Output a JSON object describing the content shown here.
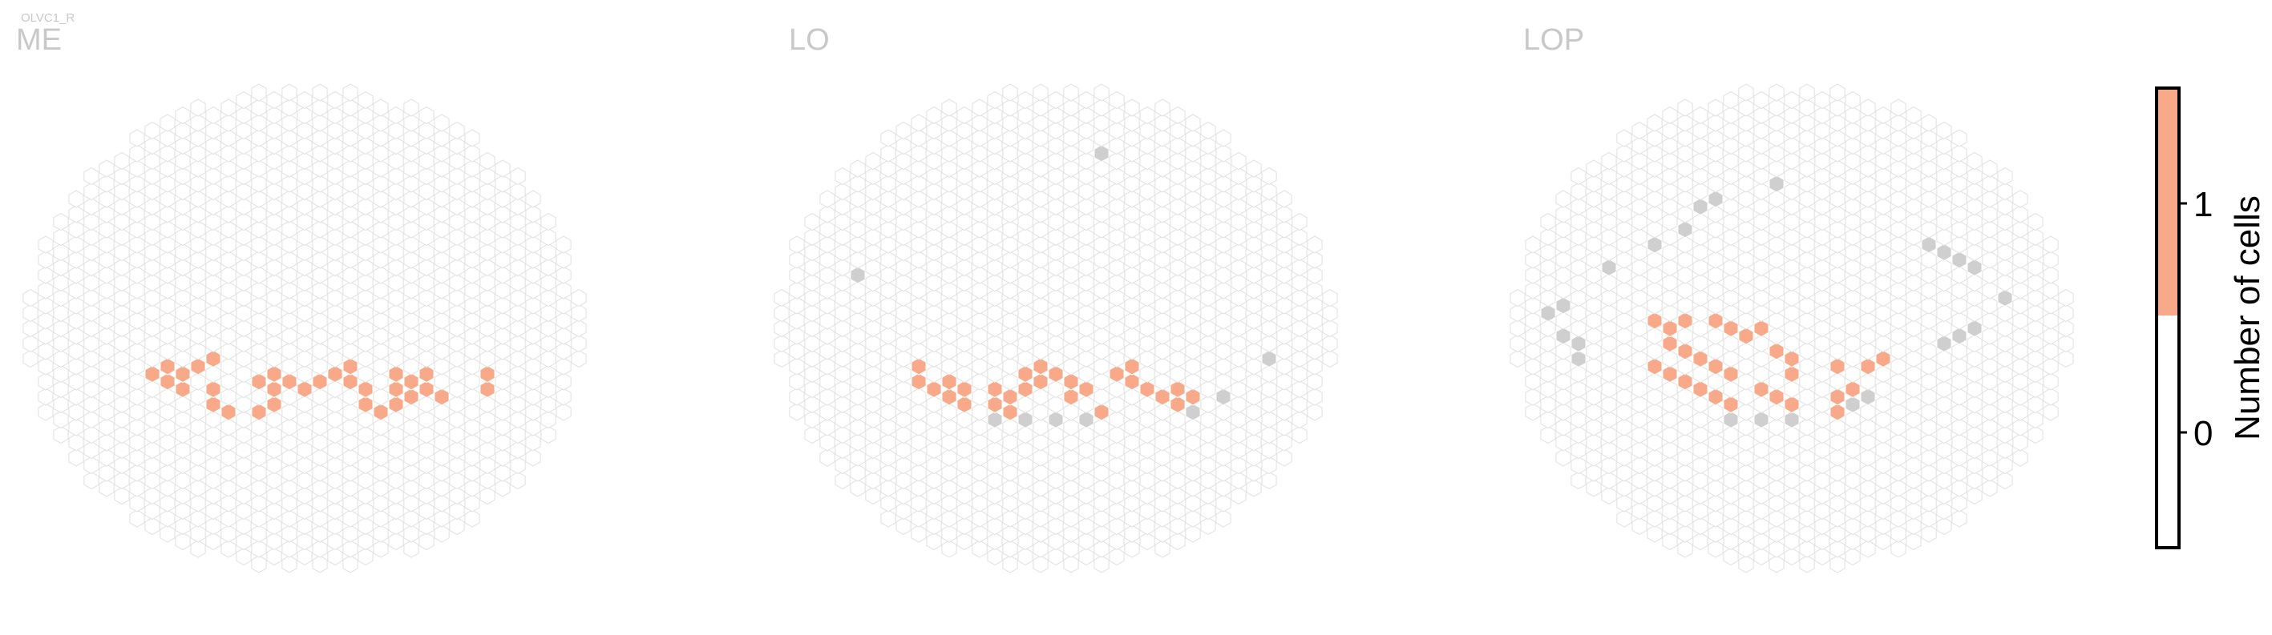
{
  "cell_type_label": "OLVC1_R",
  "colors": {
    "count_1": "#f7a98a",
    "count_0": "#ffffff",
    "hex_outline": "#e2e2e2",
    "outside_column": "#cfcfcf"
  },
  "colorbar": {
    "label": "Number of cells",
    "ticks": [
      "0",
      "1"
    ]
  },
  "chart_data": {
    "type": "heatmap",
    "layout": "hexagonal-grid",
    "panels": [
      {
        "name": "ME",
        "count_1_cells": [
          [
            -10,
            -5
          ],
          [
            -9,
            -5
          ],
          [
            -9,
            -6
          ],
          [
            -10,
            -6
          ],
          [
            -10,
            -7
          ],
          [
            -9,
            -7
          ],
          [
            -9,
            -8
          ],
          [
            -8,
            -5
          ],
          [
            -8,
            -6
          ],
          [
            -8,
            -7
          ],
          [
            -8,
            -8
          ],
          [
            -7,
            -4
          ],
          [
            -7,
            -5
          ],
          [
            -7,
            -6
          ],
          [
            -6,
            -4
          ],
          [
            -6,
            -7
          ],
          [
            -6,
            -8
          ],
          [
            -6,
            -9
          ],
          [
            -6,
            -10
          ],
          [
            -5,
            -10
          ],
          [
            -5,
            -11
          ],
          [
            -4,
            -11
          ],
          [
            -3,
            -11
          ],
          [
            -2,
            -10
          ],
          [
            -4,
            -7
          ],
          [
            -3,
            -7
          ],
          [
            -3,
            -6
          ],
          [
            -2,
            -6
          ],
          [
            -2,
            -7
          ],
          [
            -2,
            -8
          ],
          [
            -2,
            -9
          ],
          [
            -1,
            -7
          ],
          [
            -1,
            -8
          ],
          [
            0,
            -7
          ],
          [
            0,
            -8
          ],
          [
            -1,
            -10
          ],
          [
            0,
            -11
          ],
          [
            1,
            -6
          ],
          [
            1,
            -7
          ],
          [
            2,
            -6
          ],
          [
            2,
            -5
          ],
          [
            3,
            -5
          ],
          [
            3,
            -6
          ],
          [
            3,
            -7
          ],
          [
            3,
            -8
          ],
          [
            4,
            -8
          ],
          [
            4,
            -9
          ],
          [
            3,
            -10
          ],
          [
            4,
            -10
          ],
          [
            5,
            -10
          ],
          [
            5,
            -11
          ],
          [
            6,
            -11
          ],
          [
            6,
            -10
          ],
          [
            6,
            -8
          ],
          [
            7,
            -8
          ],
          [
            7,
            -7
          ],
          [
            6,
            -6
          ],
          [
            7,
            -6
          ],
          [
            8,
            -6
          ],
          [
            8,
            -7
          ],
          [
            8,
            -8
          ],
          [
            7,
            -9
          ],
          [
            7,
            -10
          ],
          [
            9,
            -9
          ],
          [
            10,
            -9
          ],
          [
            11,
            -8
          ],
          [
            12,
            -8
          ],
          [
            12,
            -7
          ],
          [
            12,
            -6
          ],
          [
            12,
            -5
          ],
          [
            11,
            -4
          ]
        ],
        "outside_cells": []
      },
      {
        "name": "LO",
        "count_1_cells": [
          [
            -10,
            -5
          ],
          [
            -9,
            -5
          ],
          [
            -9,
            -6
          ],
          [
            -10,
            -7
          ],
          [
            -9,
            -7
          ],
          [
            -8,
            -8
          ],
          [
            -7,
            -6
          ],
          [
            -7,
            -7
          ],
          [
            -7,
            -8
          ],
          [
            -7,
            -9
          ],
          [
            -6,
            -7
          ],
          [
            -6,
            -8
          ],
          [
            -6,
            -9
          ],
          [
            -6,
            -10
          ],
          [
            -4,
            -8
          ],
          [
            -4,
            -9
          ],
          [
            -4,
            -10
          ],
          [
            -3,
            -9
          ],
          [
            -3,
            -10
          ],
          [
            -3,
            -11
          ],
          [
            -2,
            -8
          ],
          [
            -2,
            -7
          ],
          [
            -2,
            -6
          ],
          [
            -1,
            -7
          ],
          [
            -1,
            -5
          ],
          [
            0,
            -6
          ],
          [
            0,
            -5
          ],
          [
            1,
            -6
          ],
          [
            1,
            -7
          ],
          [
            2,
            -7
          ],
          [
            2,
            -8
          ],
          [
            2,
            -9
          ],
          [
            1,
            -9
          ],
          [
            1,
            -10
          ],
          [
            2,
            -11
          ],
          [
            3,
            -10
          ],
          [
            3,
            -11
          ],
          [
            4,
            -7
          ],
          [
            5,
            -7
          ],
          [
            5,
            -6
          ],
          [
            5,
            -5
          ],
          [
            4,
            -6
          ],
          [
            6,
            -8
          ],
          [
            7,
            -8
          ],
          [
            8,
            -7
          ],
          [
            8,
            -8
          ],
          [
            8,
            -9
          ],
          [
            9,
            -9
          ],
          [
            9,
            -10
          ],
          [
            8,
            -10
          ],
          [
            7,
            -9
          ]
        ],
        "outside_cells": [
          [
            -9,
            -6
          ],
          [
            -6,
            -11
          ],
          [
            -5,
            -12
          ],
          [
            -4,
            -12
          ],
          [
            -3,
            -12
          ],
          [
            -2,
            -12
          ],
          [
            -1,
            -12
          ],
          [
            0,
            -12
          ],
          [
            1,
            -12
          ],
          [
            2,
            -12
          ],
          [
            3,
            -12
          ],
          [
            9,
            -11
          ],
          [
            10,
            -11
          ],
          [
            11,
            -10
          ],
          [
            11,
            -9
          ],
          [
            12,
            -7
          ],
          [
            13,
            -6
          ],
          [
            14,
            -4
          ],
          [
            -16,
            1
          ],
          [
            -13,
            7
          ],
          [
            -7,
            16
          ],
          [
            -6,
            17
          ],
          [
            3,
            23
          ],
          [
            6,
            21
          ]
        ]
      },
      {
        "name": "LOP",
        "count_1_cells": [
          [
            -9,
            1
          ],
          [
            -8,
            1
          ],
          [
            -8,
            0
          ],
          [
            -7,
            1
          ],
          [
            -7,
            0
          ],
          [
            -6,
            1
          ],
          [
            -5,
            1
          ],
          [
            -4,
            0
          ],
          [
            -4,
            1
          ],
          [
            -3,
            0
          ],
          [
            -3,
            -1
          ],
          [
            -2,
            0
          ],
          [
            -9,
            -2
          ],
          [
            -8,
            -2
          ],
          [
            -7,
            -3
          ],
          [
            -7,
            -4
          ],
          [
            -6,
            -3
          ],
          [
            -6,
            -4
          ],
          [
            -6,
            -5
          ],
          [
            -5,
            -4
          ],
          [
            -5,
            -5
          ],
          [
            -5,
            -6
          ],
          [
            -4,
            -5
          ],
          [
            -4,
            -6
          ],
          [
            -4,
            -7
          ],
          [
            -10,
            -5
          ],
          [
            -9,
            -5
          ],
          [
            -9,
            -6
          ],
          [
            -8,
            -6
          ],
          [
            -8,
            -7
          ],
          [
            -7,
            -7
          ],
          [
            -7,
            -8
          ],
          [
            -6,
            -7
          ],
          [
            -6,
            -8
          ],
          [
            -6,
            -9
          ],
          [
            -5,
            -8
          ],
          [
            -5,
            -9
          ],
          [
            -5,
            -10
          ],
          [
            -4,
            -9
          ],
          [
            -4,
            -10
          ],
          [
            -2,
            -3
          ],
          [
            -1,
            -3
          ],
          [
            -1,
            -4
          ],
          [
            0,
            -3
          ],
          [
            0,
            -4
          ],
          [
            1,
            -4
          ],
          [
            -2,
            -5
          ],
          [
            -1,
            -6
          ],
          [
            0,
            -6
          ],
          [
            1,
            -6
          ],
          [
            2,
            -7
          ],
          [
            -3,
            -8
          ],
          [
            -2,
            -8
          ],
          [
            -2,
            -9
          ],
          [
            -1,
            -9
          ],
          [
            -1,
            -10
          ],
          [
            0,
            -10
          ],
          [
            0,
            -11
          ],
          [
            1,
            -10
          ],
          [
            3,
            -4
          ],
          [
            3,
            -5
          ],
          [
            3,
            -6
          ],
          [
            4,
            -5
          ],
          [
            5,
            -5
          ],
          [
            6,
            -4
          ],
          [
            2,
            -9
          ],
          [
            3,
            -9
          ],
          [
            4,
            -8
          ],
          [
            3,
            -11
          ]
        ],
        "outside_cells": [
          [
            -15,
            0
          ],
          [
            -15,
            -1
          ],
          [
            -15,
            -2
          ],
          [
            -14,
            -2
          ],
          [
            -14,
            -3
          ],
          [
            -16,
            1
          ],
          [
            -16,
            2
          ],
          [
            -15,
            3
          ],
          [
            -15,
            4
          ],
          [
            -14,
            5
          ],
          [
            -13,
            6
          ],
          [
            -12,
            7
          ],
          [
            -12,
            8
          ],
          [
            -11,
            8
          ],
          [
            -10,
            9
          ],
          [
            -9,
            10
          ],
          [
            -9,
            11
          ],
          [
            -8,
            11
          ],
          [
            -7,
            12
          ],
          [
            -7,
            13
          ],
          [
            -6,
            16
          ],
          [
            -5,
            17
          ],
          [
            -3,
            18
          ],
          [
            -1,
            19
          ],
          [
            1,
            18
          ],
          [
            2,
            17
          ],
          [
            6,
            15
          ],
          [
            8,
            13
          ],
          [
            9,
            11
          ],
          [
            10,
            10
          ],
          [
            11,
            9
          ],
          [
            12,
            8
          ],
          [
            12,
            7
          ],
          [
            13,
            6
          ],
          [
            14,
            4
          ],
          [
            14,
            3
          ],
          [
            13,
            2
          ],
          [
            12,
            1
          ],
          [
            12,
            0
          ],
          [
            11,
            -1
          ],
          [
            10,
            -2
          ],
          [
            10,
            -3
          ],
          [
            9,
            -4
          ],
          [
            8,
            -5
          ],
          [
            7,
            -6
          ],
          [
            5,
            -9
          ],
          [
            4,
            -10
          ],
          [
            2,
            -11
          ],
          [
            1,
            -12
          ],
          [
            0,
            -12
          ],
          [
            -1,
            -12
          ],
          [
            -2,
            -12
          ],
          [
            -3,
            -12
          ],
          [
            -4,
            -12
          ],
          [
            -5,
            -12
          ],
          [
            -6,
            -11
          ],
          [
            -7,
            -10
          ],
          [
            -8,
            -9
          ],
          [
            -9,
            -8
          ],
          [
            -10,
            -7
          ],
          [
            -11,
            -6
          ],
          [
            -12,
            -5
          ],
          [
            -13,
            -4
          ],
          [
            -14,
            -4
          ]
        ]
      }
    ]
  }
}
